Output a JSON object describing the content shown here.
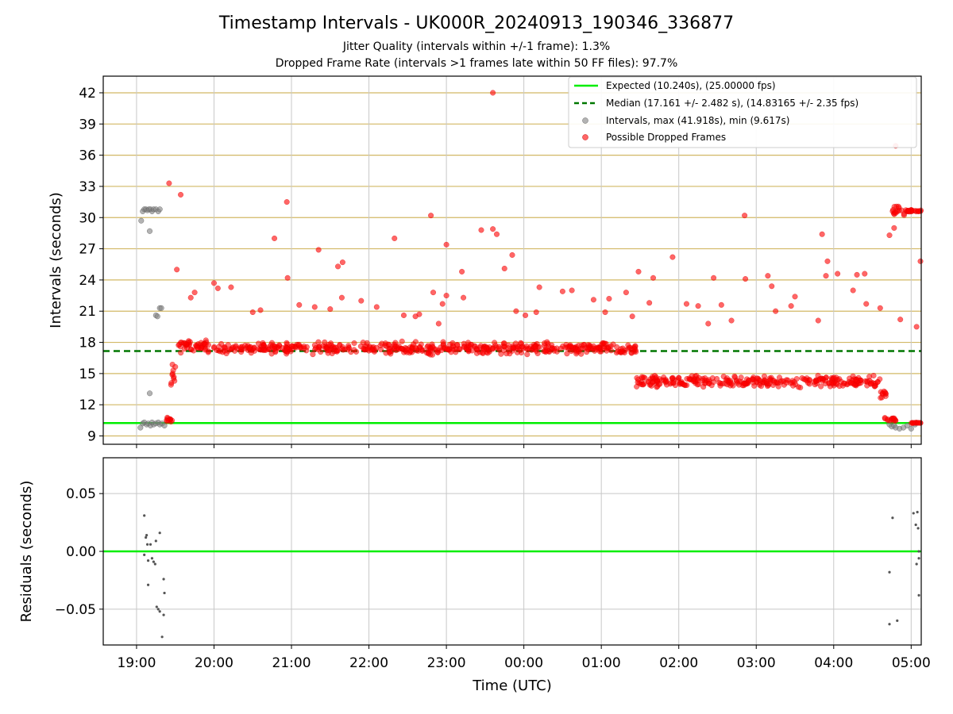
{
  "chart_data": [
    {
      "type": "scatter",
      "title": "Timestamp Intervals - UK000R_20240913_190346_336877",
      "subtitle_lines": [
        "Jitter Quality (intervals within +/-1 frame): 1.3%",
        "Dropped Frame Rate (intervals >1 frames late within 50 FF files): 97.7%"
      ],
      "xlabel": "Time (UTC)",
      "ylabel": "Intervals (seconds)",
      "x_unit": "hours since 19:00 UTC",
      "xlim": [
        -0.43,
        10.13
      ],
      "ylim": [
        8.2,
        43.6
      ],
      "x_ticks": [
        0,
        1,
        2,
        3,
        4,
        5,
        6,
        7,
        8,
        9,
        10
      ],
      "x_tick_labels": [
        "19:00",
        "20:00",
        "21:00",
        "22:00",
        "23:00",
        "00:00",
        "01:00",
        "02:00",
        "03:00",
        "04:00",
        "05:00"
      ],
      "y_ticks": [
        9,
        12,
        15,
        18,
        21,
        24,
        27,
        30,
        33,
        36,
        39,
        42
      ],
      "y_tick_labels": [
        "9",
        "12",
        "15",
        "18",
        "21",
        "24",
        "27",
        "30",
        "33",
        "36",
        "39",
        "42"
      ],
      "grid": true,
      "legend_position": "top-right",
      "legend": [
        "Expected (10.240s), (25.00000 fps)",
        "Median (17.161 +/- 2.482 s), (14.83165 +/- 2.35 fps)",
        "Intervals, max (41.918s), min (9.617s)",
        "Possible Dropped Frames"
      ],
      "series": [
        {
          "name": "Expected (10.240s), (25.00000 fps)",
          "kind": "hline",
          "y": 10.24,
          "color": "#00ee00"
        },
        {
          "name": "Median (17.161 +/- 2.482 s), (14.83165 +/- 2.35 fps)",
          "kind": "hline-dashed",
          "y": 17.161,
          "color": "#007700"
        },
        {
          "name": "Intervals, max (41.918s), min (9.617s)",
          "kind": "scatter",
          "color": "#808080",
          "points": [
            [
              0.05,
              9.8
            ],
            [
              0.08,
              10.2
            ],
            [
              0.1,
              10.3
            ],
            [
              0.13,
              10.1
            ],
            [
              0.15,
              10.2
            ],
            [
              0.18,
              10.0
            ],
            [
              0.2,
              10.3
            ],
            [
              0.22,
              10.1
            ],
            [
              0.25,
              10.2
            ],
            [
              0.28,
              10.3
            ],
            [
              0.3,
              10.1
            ],
            [
              0.33,
              10.2
            ],
            [
              0.36,
              10.0
            ],
            [
              0.06,
              29.7
            ],
            [
              0.08,
              30.6
            ],
            [
              0.1,
              30.8
            ],
            [
              0.12,
              30.8
            ],
            [
              0.14,
              30.7
            ],
            [
              0.16,
              30.8
            ],
            [
              0.18,
              30.8
            ],
            [
              0.2,
              30.6
            ],
            [
              0.22,
              30.8
            ],
            [
              0.25,
              30.8
            ],
            [
              0.28,
              30.6
            ],
            [
              0.3,
              30.8
            ],
            [
              0.17,
              28.7
            ],
            [
              0.17,
              13.1
            ],
            [
              0.25,
              20.6
            ],
            [
              0.27,
              20.5
            ],
            [
              0.3,
              21.3
            ],
            [
              0.32,
              21.3
            ],
            [
              9.72,
              10.1
            ],
            [
              9.75,
              9.9
            ],
            [
              9.78,
              10.0
            ],
            [
              9.8,
              9.8
            ],
            [
              9.85,
              9.7
            ],
            [
              9.9,
              9.8
            ],
            [
              9.95,
              10.0
            ],
            [
              10.0,
              9.7
            ],
            [
              10.05,
              10.1
            ]
          ]
        },
        {
          "name": "Possible Dropped Frames",
          "kind": "scatter",
          "color": "#ff0000",
          "outliers": [
            [
              4.6,
              42.0
            ],
            [
              9.8,
              36.9
            ],
            [
              0.42,
              33.3
            ],
            [
              0.57,
              32.2
            ],
            [
              1.94,
              31.5
            ],
            [
              3.8,
              30.2
            ],
            [
              7.85,
              30.2
            ],
            [
              4.0,
              27.4
            ],
            [
              4.45,
              28.8
            ],
            [
              4.6,
              28.9
            ],
            [
              4.65,
              28.4
            ],
            [
              4.75,
              25.1
            ],
            [
              4.85,
              26.4
            ],
            [
              6.92,
              26.2
            ],
            [
              8.85,
              28.4
            ],
            [
              8.92,
              25.8
            ],
            [
              9.72,
              28.3
            ],
            [
              9.78,
              29.0
            ],
            [
              1.78,
              28.0
            ],
            [
              1.95,
              24.2
            ],
            [
              2.6,
              25.3
            ],
            [
              2.66,
              25.7
            ],
            [
              2.35,
              26.9
            ],
            [
              2.65,
              22.3
            ],
            [
              3.33,
              28.0
            ],
            [
              3.83,
              22.8
            ],
            [
              4.0,
              22.5
            ],
            [
              4.2,
              24.8
            ],
            [
              4.22,
              22.3
            ],
            [
              3.65,
              20.7
            ],
            [
              5.2,
              23.3
            ],
            [
              6.48,
              24.8
            ],
            [
              6.67,
              24.2
            ],
            [
              7.45,
              24.2
            ],
            [
              7.86,
              24.1
            ],
            [
              8.15,
              24.4
            ],
            [
              8.2,
              23.4
            ],
            [
              8.5,
              22.4
            ],
            [
              8.9,
              24.4
            ],
            [
              9.3,
              24.5
            ],
            [
              9.4,
              24.6
            ],
            [
              9.05,
              24.6
            ],
            [
              10.12,
              25.8
            ],
            [
              10.07,
              19.5
            ],
            [
              1.0,
              23.7
            ],
            [
              1.05,
              23.2
            ],
            [
              1.22,
              23.3
            ],
            [
              0.7,
              22.3
            ],
            [
              0.75,
              22.8
            ],
            [
              0.52,
              25.0
            ],
            [
              3.6,
              20.5
            ],
            [
              3.95,
              21.7
            ],
            [
              6.05,
              20.9
            ],
            [
              7.55,
              21.6
            ],
            [
              9.25,
              23.0
            ],
            [
              9.6,
              21.3
            ],
            [
              9.42,
              21.7
            ],
            [
              5.5,
              22.9
            ],
            [
              5.62,
              23.0
            ],
            [
              5.9,
              22.1
            ],
            [
              6.1,
              22.2
            ],
            [
              6.32,
              22.8
            ],
            [
              4.9,
              21.0
            ],
            [
              5.02,
              20.6
            ],
            [
              5.16,
              20.9
            ],
            [
              8.25,
              21.0
            ],
            [
              8.45,
              21.5
            ],
            [
              8.8,
              20.1
            ],
            [
              9.86,
              20.2
            ],
            [
              2.9,
              22.0
            ],
            [
              3.1,
              21.4
            ],
            [
              3.45,
              20.6
            ],
            [
              1.5,
              20.9
            ],
            [
              1.6,
              21.1
            ],
            [
              2.1,
              21.6
            ],
            [
              2.3,
              21.4
            ],
            [
              2.5,
              21.2
            ],
            [
              3.9,
              19.8
            ],
            [
              6.4,
              20.5
            ],
            [
              6.62,
              21.8
            ],
            [
              7.1,
              21.7
            ],
            [
              7.25,
              21.5
            ],
            [
              7.68,
              20.1
            ],
            [
              7.38,
              19.8
            ]
          ],
          "bands": [
            {
              "x": [
                0.38,
                0.46
              ],
              "y": [
                10.1,
                10.9
              ]
            },
            {
              "x": [
                0.42,
                0.52
              ],
              "y": [
                12.6,
                17.5
              ]
            },
            {
              "x": [
                0.52,
                1.05
              ],
              "y": [
                16.8,
                18.4
              ]
            },
            {
              "x": [
                1.05,
                6.18
              ],
              "y": [
                16.7,
                18.2
              ]
            },
            {
              "x": [
                6.18,
                6.45
              ],
              "y": [
                16.6,
                18.0
              ]
            },
            {
              "x": [
                6.45,
                9.42
              ],
              "y": [
                13.4,
                15.0
              ]
            },
            {
              "x": [
                9.42,
                9.6
              ],
              "y": [
                13.4,
                14.9
              ]
            },
            {
              "x": [
                9.6,
                9.68
              ],
              "y": [
                12.0,
                14.0
              ]
            },
            {
              "x": [
                9.65,
                9.8
              ],
              "y": [
                10.2,
                11.0
              ]
            },
            {
              "x": [
                10.0,
                10.13
              ],
              "y": [
                10.2,
                10.3
              ]
            },
            {
              "x": [
                9.75,
                9.92
              ],
              "y": [
                29.8,
                31.5
              ]
            },
            {
              "x": [
                9.92,
                10.13
              ],
              "y": [
                30.5,
                30.8
              ]
            }
          ]
        }
      ]
    },
    {
      "type": "scatter",
      "xlabel": "Time (UTC)",
      "ylabel": "Residuals (seconds)",
      "xlim": [
        -0.43,
        10.13
      ],
      "ylim": [
        -0.081,
        0.081
      ],
      "y_ticks": [
        0.05,
        0.0,
        -0.05
      ],
      "y_tick_labels": [
        "0.05",
        "0.00",
        "−0.05"
      ],
      "x_ticks": [
        0,
        1,
        2,
        3,
        4,
        5,
        6,
        7,
        8,
        9,
        10
      ],
      "x_tick_labels": [
        "19:00",
        "20:00",
        "21:00",
        "22:00",
        "23:00",
        "00:00",
        "01:00",
        "02:00",
        "03:00",
        "04:00",
        "05:00"
      ],
      "grid": true,
      "series": [
        {
          "name": "zero",
          "kind": "hline",
          "y": 0.0,
          "color": "#00ee00"
        },
        {
          "name": "residuals",
          "kind": "scatter",
          "color": "#555555",
          "points": [
            [
              0.1,
              0.031
            ],
            [
              0.12,
              0.012
            ],
            [
              0.13,
              0.014
            ],
            [
              0.14,
              0.006
            ],
            [
              0.18,
              0.006
            ],
            [
              0.25,
              0.009
            ],
            [
              0.3,
              0.016
            ],
            [
              0.1,
              -0.003
            ],
            [
              0.15,
              -0.008
            ],
            [
              0.2,
              -0.006
            ],
            [
              0.22,
              -0.009
            ],
            [
              0.24,
              -0.011
            ],
            [
              0.15,
              -0.029
            ],
            [
              0.35,
              -0.024
            ],
            [
              0.36,
              -0.036
            ],
            [
              0.26,
              -0.048
            ],
            [
              0.28,
              -0.05
            ],
            [
              0.3,
              -0.052
            ],
            [
              0.35,
              -0.055
            ],
            [
              0.33,
              -0.074
            ],
            [
              9.72,
              -0.018
            ],
            [
              9.76,
              0.029
            ],
            [
              9.72,
              -0.063
            ],
            [
              9.82,
              -0.06
            ],
            [
              10.03,
              0.033
            ],
            [
              10.08,
              0.034
            ],
            [
              10.06,
              0.023
            ],
            [
              10.09,
              0.02
            ],
            [
              10.1,
              0.0
            ],
            [
              10.07,
              -0.011
            ],
            [
              10.1,
              -0.006
            ],
            [
              10.1,
              -0.038
            ]
          ]
        }
      ]
    }
  ]
}
